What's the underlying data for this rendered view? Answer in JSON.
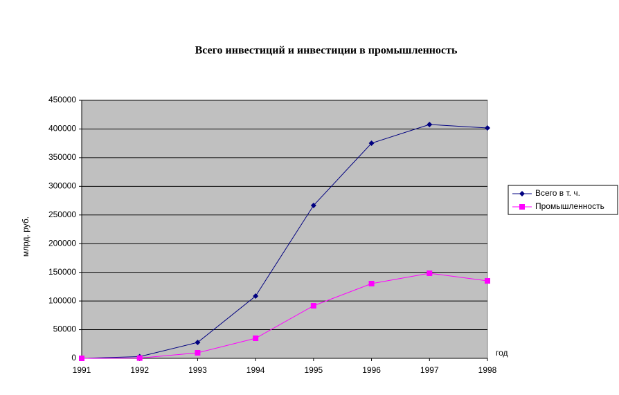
{
  "chart_data": {
    "type": "line",
    "title": "Всего инвестиций  и инвестиции в промышленность",
    "x_label": "год",
    "y_label": "млрд. руб.",
    "x": [
      1991,
      1992,
      1993,
      1994,
      1995,
      1996,
      1997,
      1998
    ],
    "xlim": [
      1991,
      1998
    ],
    "xticks": [
      1991,
      1992,
      1993,
      1994,
      1995,
      1996,
      1997,
      1998
    ],
    "ylim": [
      0,
      450000
    ],
    "yticks": [
      0,
      50000,
      100000,
      150000,
      200000,
      250000,
      300000,
      350000,
      400000,
      450000
    ],
    "grid": true,
    "legend": "right",
    "series": [
      {
        "name": "Всего в т. ч.",
        "color": "#000080",
        "marker": "diamond",
        "values": [
          0,
          3000,
          27700,
          108600,
          266600,
          375200,
          407800,
          401700
        ]
      },
      {
        "name": "Промышленность",
        "color": "#ff00ff",
        "marker": "square",
        "values": [
          0,
          500,
          9650,
          35000,
          91700,
          130300,
          148400,
          135100
        ]
      }
    ]
  }
}
